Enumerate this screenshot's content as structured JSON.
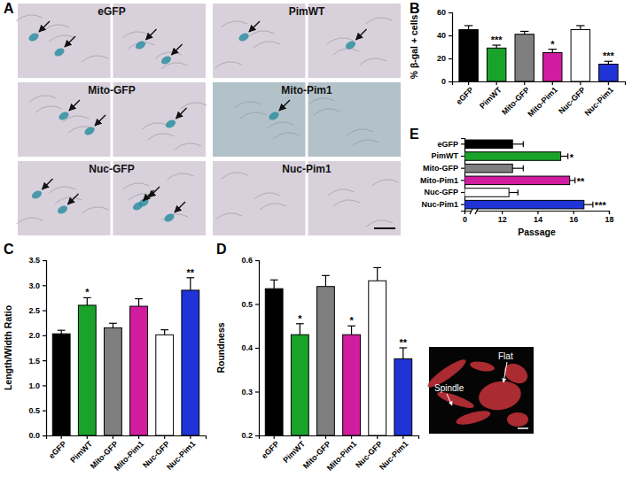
{
  "chart_data": [
    {
      "panel": "B",
      "type": "bar",
      "categories": [
        "eGFP",
        "PimWT",
        "Mito-GFP",
        "Mito-Pim1",
        "Nuc-GFP",
        "Nuc-Pim1"
      ],
      "values": [
        45,
        29,
        41,
        25,
        45,
        15
      ],
      "errors": [
        3.5,
        2.5,
        2.5,
        3,
        3.5,
        2.5
      ],
      "colors": [
        "#000000",
        "#1aa32b",
        "#7f7f7f",
        "#d11ca0",
        "#ffffff",
        "#1f33d6"
      ],
      "ylabel": "% β-gal + cells",
      "ylim": [
        0,
        60
      ],
      "yticks": [
        0,
        20,
        40,
        60
      ],
      "annotations": [
        {
          "x": "PimWT",
          "text": "***"
        },
        {
          "x": "Mito-Pim1",
          "text": "*"
        },
        {
          "x": "Nuc-Pim1",
          "text": "***"
        }
      ]
    },
    {
      "panel": "C",
      "type": "bar",
      "categories": [
        "eGFP",
        "PimWT",
        "Mito-GFP",
        "Mito-Pim1",
        "Nuc-GFP",
        "Nuc-Pim1"
      ],
      "values": [
        2.03,
        2.6,
        2.15,
        2.58,
        2.01,
        2.9
      ],
      "errors": [
        0.07,
        0.15,
        0.09,
        0.15,
        0.1,
        0.25
      ],
      "colors": [
        "#000000",
        "#1aa32b",
        "#7f7f7f",
        "#d11ca0",
        "#ffffff",
        "#1f33d6"
      ],
      "ylabel": "Length/Width Ratio",
      "ylim": [
        0,
        3.5
      ],
      "yticks": [
        {
          "value": 0,
          "label": "0.0"
        },
        0.5,
        {
          "value": 1,
          "label": "1.0"
        },
        1.5,
        {
          "value": 2,
          "label": "2.0"
        },
        2.5,
        {
          "value": 3,
          "label": "3.0"
        },
        3.5
      ],
      "annotations": [
        {
          "x": "PimWT",
          "text": "*"
        },
        {
          "x": "Nuc-Pim1",
          "text": "**"
        }
      ]
    },
    {
      "panel": "D",
      "type": "bar",
      "categories": [
        "eGFP",
        "PimWT",
        "Mito-GFP",
        "Mito-Pim1",
        "Nuc-GFP",
        "Nuc-Pim1"
      ],
      "values": [
        0.535,
        0.43,
        0.54,
        0.43,
        0.553,
        0.375
      ],
      "errors": [
        0.02,
        0.025,
        0.025,
        0.02,
        0.03,
        0.025
      ],
      "colors": [
        "#000000",
        "#1aa32b",
        "#7f7f7f",
        "#d11ca0",
        "#ffffff",
        "#1f33d6"
      ],
      "ylabel": "Roundness",
      "ylim": [
        0.2,
        0.6
      ],
      "yticks": [
        0.2,
        0.3,
        0.4,
        0.5,
        0.6
      ],
      "annotations": [
        {
          "x": "PimWT",
          "text": "*"
        },
        {
          "x": "Mito-Pim1",
          "text": "*"
        },
        {
          "x": "Nuc-Pim1",
          "text": "**"
        }
      ]
    },
    {
      "panel": "E",
      "type": "bar",
      "orientation": "horizontal",
      "categories": [
        "eGFP",
        "PimWT",
        "Mito-GFP",
        "Mito-Pim1",
        "Nuc-GFP",
        "Nuc-Pim1"
      ],
      "values": [
        12.6,
        15.3,
        12.6,
        15.8,
        12.4,
        16.6
      ],
      "errors": [
        0.6,
        0.4,
        0.6,
        0.3,
        0.5,
        0.5
      ],
      "colors": [
        "#000000",
        "#1aa32b",
        "#7f7f7f",
        "#d11ca0",
        "#ffffff",
        "#1f33d6"
      ],
      "xlabel": "Passage",
      "xlim": [
        0,
        18
      ],
      "xticks": [
        0,
        12,
        14,
        16,
        18
      ],
      "annotations": [
        {
          "x": "PimWT",
          "text": "*"
        },
        {
          "x": "Mito-Pim1",
          "text": "**"
        },
        {
          "x": "Nuc-Pim1",
          "text": "***"
        }
      ]
    }
  ],
  "panel_a": {
    "panel": "A",
    "images": [
      "eGFP",
      "PimWT",
      "Mito-GFP",
      "Mito-Pim1",
      "Nuc-GFP",
      "Nuc-Pim1"
    ]
  },
  "inset": {
    "labels": [
      "Spindle",
      "Flat"
    ]
  }
}
